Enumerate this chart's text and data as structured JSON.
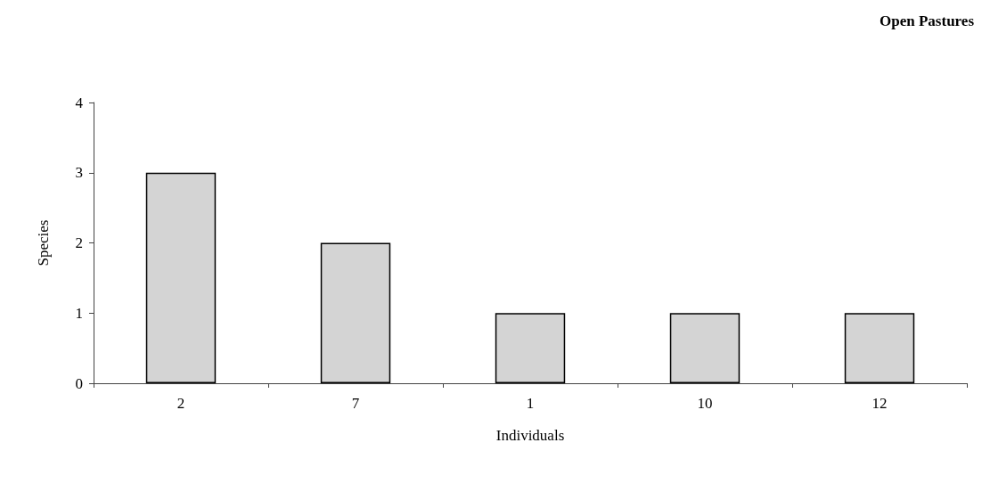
{
  "chart_data": {
    "type": "bar",
    "title": "Open Pastures",
    "xlabel": "Individuals",
    "ylabel": "Species",
    "categories": [
      "2",
      "7",
      "1",
      "10",
      "12"
    ],
    "values": [
      3,
      2,
      1,
      1,
      1
    ],
    "color": "#d4d4d4",
    "ylim": [
      0,
      4
    ],
    "yticks": [
      0,
      1,
      2,
      3,
      4
    ],
    "grid": false
  }
}
